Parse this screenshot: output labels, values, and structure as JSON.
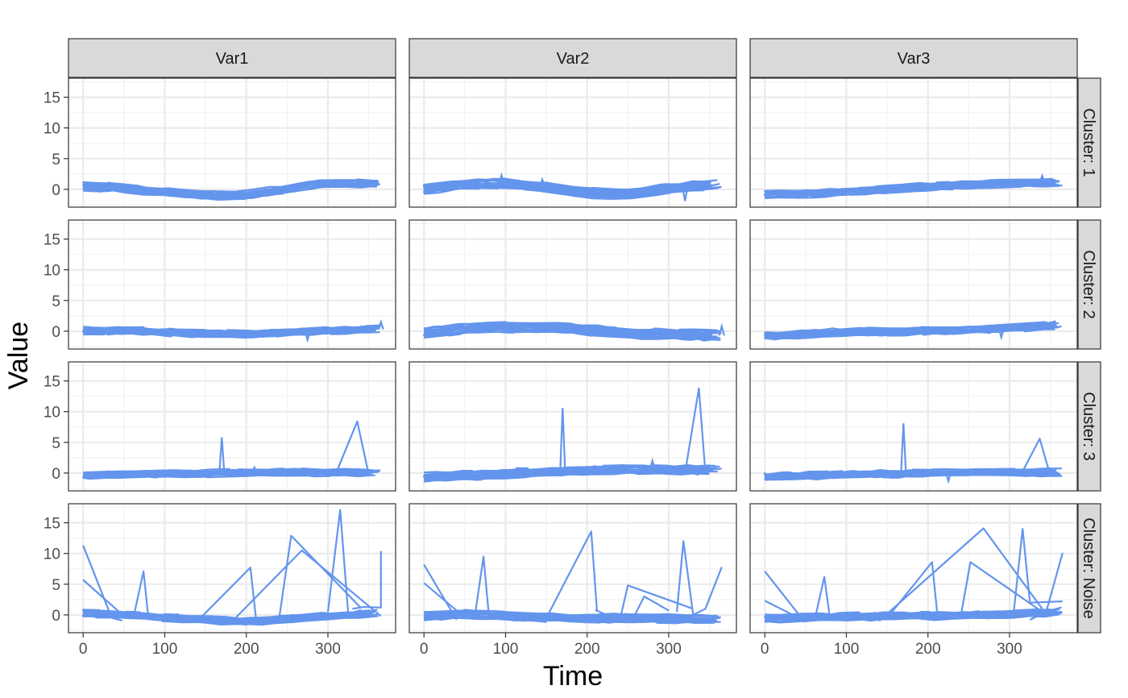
{
  "chart_data": {
    "type": "line",
    "facet_columns": [
      "Var1",
      "Var2",
      "Var3"
    ],
    "facet_rows": [
      "Cluster: 1",
      "Cluster: 2",
      "Cluster: 3",
      "Cluster: Noise"
    ],
    "xlabel": "Time",
    "ylabel": "Value",
    "xlim": [
      -18,
      383
    ],
    "ylim": [
      -2.9,
      18.1
    ],
    "x_ticks": [
      0,
      100,
      200,
      300
    ],
    "x_tick_labels": [
      "0",
      "100",
      "200",
      "300"
    ],
    "y_ticks": [
      0,
      5,
      10,
      15
    ],
    "y_tick_labels": [
      "0",
      "5",
      "10",
      "15"
    ],
    "grid": true,
    "line_color": "#6495ED",
    "panels": [
      {
        "row": "Cluster: 1",
        "col": "Var1",
        "band": [
          [
            0,
            0.5
          ],
          [
            40,
            0.3
          ],
          [
            100,
            -0.5
          ],
          [
            150,
            -1.0
          ],
          [
            200,
            -0.9
          ],
          [
            250,
            0.1
          ],
          [
            300,
            1.0
          ],
          [
            365,
            1.0
          ]
        ],
        "band_width": 1.2,
        "spikes": [],
        "excursions": []
      },
      {
        "row": "Cluster: 1",
        "col": "Var2",
        "band": [
          [
            0,
            0.0
          ],
          [
            50,
            0.8
          ],
          [
            100,
            0.9
          ],
          [
            150,
            0.4
          ],
          [
            200,
            -0.6
          ],
          [
            250,
            -0.8
          ],
          [
            300,
            0.1
          ],
          [
            365,
            0.9
          ]
        ],
        "band_width": 1.4,
        "spikes": [
          [
            95,
            2.3
          ],
          [
            145,
            1.6
          ],
          [
            320,
            -1.9
          ]
        ],
        "excursions": []
      },
      {
        "row": "Cluster: 1",
        "col": "Var3",
        "band": [
          [
            0,
            -0.9
          ],
          [
            80,
            -0.6
          ],
          [
            150,
            0.0
          ],
          [
            220,
            0.6
          ],
          [
            300,
            1.0
          ],
          [
            365,
            1.1
          ]
        ],
        "band_width": 1.1,
        "spikes": [
          [
            340,
            2.2
          ]
        ],
        "excursions": []
      },
      {
        "row": "Cluster: 2",
        "col": "Var1",
        "band": [
          [
            0,
            0.1
          ],
          [
            60,
            0.1
          ],
          [
            120,
            -0.3
          ],
          [
            200,
            -0.5
          ],
          [
            280,
            0.0
          ],
          [
            365,
            0.3
          ]
        ],
        "band_width": 1.0,
        "spikes": [
          [
            365,
            1.5
          ],
          [
            275,
            -1.4
          ]
        ],
        "excursions": []
      },
      {
        "row": "Cluster: 2",
        "col": "Var2",
        "band": [
          [
            0,
            -0.3
          ],
          [
            60,
            0.5
          ],
          [
            120,
            0.7
          ],
          [
            180,
            0.5
          ],
          [
            250,
            -0.4
          ],
          [
            365,
            -0.7
          ]
        ],
        "band_width": 1.5,
        "spikes": [
          [
            365,
            0.8
          ]
        ],
        "excursions": []
      },
      {
        "row": "Cluster: 2",
        "col": "Var3",
        "band": [
          [
            0,
            -0.8
          ],
          [
            100,
            -0.1
          ],
          [
            200,
            0.0
          ],
          [
            280,
            0.4
          ],
          [
            365,
            1.0
          ]
        ],
        "band_width": 1.1,
        "spikes": [
          [
            290,
            -1.0
          ]
        ],
        "excursions": []
      },
      {
        "row": "Cluster: 3",
        "col": "Var1",
        "band": [
          [
            0,
            -0.4
          ],
          [
            120,
            -0.1
          ],
          [
            240,
            0.1
          ],
          [
            365,
            0.1
          ]
        ],
        "band_width": 1.0,
        "spikes": [
          [
            170,
            5.8
          ],
          [
            210,
            0.9
          ]
        ],
        "excursions": [
          [
            [
              310,
              0.0
            ],
            [
              336,
              8.4
            ],
            [
              350,
              -0.2
            ]
          ]
        ]
      },
      {
        "row": "Cluster: 3",
        "col": "Var2",
        "band": [
          [
            0,
            -0.7
          ],
          [
            120,
            0.0
          ],
          [
            240,
            0.6
          ],
          [
            365,
            0.5
          ]
        ],
        "band_width": 1.3,
        "spikes": [
          [
            170,
            10.6
          ],
          [
            280,
            2.0
          ]
        ],
        "excursions": [
          [
            [
              320,
              0.0
            ],
            [
              337,
              13.8
            ],
            [
              345,
              0.0
            ]
          ]
        ]
      },
      {
        "row": "Cluster: 3",
        "col": "Var3",
        "band": [
          [
            0,
            -0.6
          ],
          [
            120,
            -0.2
          ],
          [
            240,
            0.1
          ],
          [
            365,
            0.1
          ]
        ],
        "band_width": 1.0,
        "spikes": [
          [
            170,
            8.1
          ],
          [
            225,
            -1.3
          ]
        ],
        "excursions": [
          [
            [
              315,
              0.0
            ],
            [
              337,
              5.6
            ],
            [
              350,
              -0.4
            ]
          ]
        ]
      },
      {
        "row": "Cluster: Noise",
        "col": "Var1",
        "band": [
          [
            0,
            0.2
          ],
          [
            60,
            0.0
          ],
          [
            120,
            -0.6
          ],
          [
            200,
            -1.1
          ],
          [
            280,
            -0.4
          ],
          [
            365,
            0.3
          ]
        ],
        "band_width": 1.0,
        "spikes": [],
        "excursions": [
          [
            [
              0,
              11.3
            ],
            [
              35,
              -0.5
            ],
            [
              48,
              -0.9
            ]
          ],
          [
            [
              0,
              5.7
            ],
            [
              50,
              -0.2
            ],
            [
              62,
              -0.6
            ]
          ],
          [
            [
              62,
              -0.2
            ],
            [
              74,
              7.1
            ],
            [
              80,
              -0.5
            ]
          ],
          [
            [
              140,
              -1.0
            ],
            [
              205,
              7.7
            ],
            [
              212,
              -0.8
            ]
          ],
          [
            [
              240,
              -0.8
            ],
            [
              255,
              12.9
            ],
            [
              340,
              1.2
            ]
          ],
          [
            [
              180,
              -1.4
            ],
            [
              268,
              10.5
            ],
            [
              365,
              -0.2
            ]
          ],
          [
            [
              300,
              0.5
            ],
            [
              315,
              17.1
            ],
            [
              325,
              0.0
            ]
          ],
          [
            [
              330,
              1.0
            ],
            [
              345,
              1.3
            ],
            [
              365,
              1.2
            ],
            [
              365,
              10.4
            ]
          ]
        ]
      },
      {
        "row": "Cluster: Noise",
        "col": "Var2",
        "band": [
          [
            0,
            -0.2
          ],
          [
            60,
            0.1
          ],
          [
            130,
            -0.4
          ],
          [
            200,
            -0.5
          ],
          [
            280,
            -0.6
          ],
          [
            365,
            -0.7
          ]
        ],
        "band_width": 1.2,
        "spikes": [],
        "excursions": [
          [
            [
              0,
              8.2
            ],
            [
              40,
              -0.8
            ]
          ],
          [
            [
              0,
              5.2
            ],
            [
              50,
              -0.4
            ]
          ],
          [
            [
              62,
              -0.5
            ],
            [
              73,
              9.5
            ],
            [
              80,
              -0.7
            ]
          ],
          [
            [
              150,
              -0.5
            ],
            [
              205,
              13.6
            ],
            [
              212,
              0.7
            ]
          ],
          [
            [
              210,
              0.8
            ],
            [
              240,
              -0.9
            ],
            [
              250,
              4.8
            ],
            [
              330,
              1.0
            ]
          ],
          [
            [
              255,
              -0.9
            ],
            [
              270,
              3.0
            ],
            [
              300,
              0.7
            ]
          ],
          [
            [
              310,
              0.5
            ],
            [
              318,
              12.0
            ],
            [
              330,
              0.0
            ]
          ],
          [
            [
              330,
              0.0
            ],
            [
              345,
              1.0
            ],
            [
              365,
              7.8
            ]
          ]
        ]
      },
      {
        "row": "Cluster: Noise",
        "col": "Var3",
        "band": [
          [
            0,
            -0.6
          ],
          [
            80,
            -0.3
          ],
          [
            160,
            -0.2
          ],
          [
            250,
            -0.1
          ],
          [
            320,
            0.2
          ],
          [
            365,
            0.6
          ]
        ],
        "band_width": 1.1,
        "spikes": [],
        "excursions": [
          [
            [
              0,
              7.1
            ],
            [
              45,
              -0.5
            ]
          ],
          [
            [
              0,
              2.3
            ],
            [
              45,
              -0.7
            ]
          ],
          [
            [
              62,
              -0.3
            ],
            [
              73,
              6.2
            ],
            [
              80,
              -0.7
            ]
          ],
          [
            [
              150,
              -0.5
            ],
            [
              205,
              8.6
            ],
            [
              212,
              -0.6
            ]
          ],
          [
            [
              140,
              -1.0
            ],
            [
              268,
              14.1
            ],
            [
              340,
              1.0
            ]
          ],
          [
            [
              240,
              -0.4
            ],
            [
              252,
              8.6
            ],
            [
              340,
              0.5
            ]
          ],
          [
            [
              305,
              0.2
            ],
            [
              316,
              14.0
            ],
            [
              325,
              2.0
            ],
            [
              365,
              2.2
            ]
          ],
          [
            [
              325,
              -0.8
            ],
            [
              345,
              0.5
            ],
            [
              365,
              10.1
            ]
          ]
        ]
      }
    ]
  }
}
